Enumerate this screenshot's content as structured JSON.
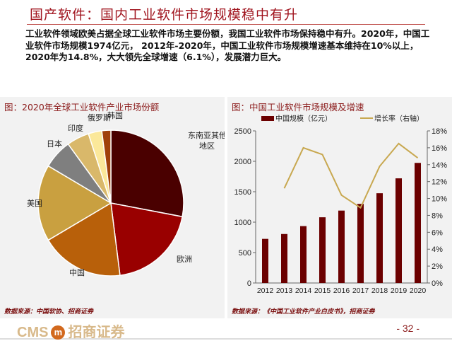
{
  "header": {
    "title": "国产软件：国内工业软件市场规模稳中有升"
  },
  "body_text": "工业软件领域欧美占据全球工业软件市场主要份额，我国工业软件市场保持稳中有升。2020年，中国工业软件市场规模1974亿元， 2012年-2020年，中国工业软件市场规模增速基本维持在10%以上，2020年为14.8%，大大领先全球增速（6.1%），发展潜力巨大。",
  "left_panel": {
    "title": "图：2020年全球工业软件产业市场份额",
    "source": "数据来源：中国软协、招商证券"
  },
  "right_panel": {
    "title": "图：中国工业软件市场规模及增速",
    "source": "数据来源：《中国工业软件产业白皮书》，招商证券"
  },
  "footer": {
    "logo_text": "CMS",
    "logo_mark": "m",
    "logo_cn": "招商证券",
    "page": "- 32 -"
  },
  "chart_data": [
    {
      "type": "pie",
      "title": "图：2020年全球工业软件产业市场份额",
      "slices": [
        {
          "label": "东南亚其他地区",
          "value": 28,
          "color": "#4a0000"
        },
        {
          "label": "欧洲",
          "value": 20,
          "color": "#990000"
        },
        {
          "label": "中国",
          "value": 18.5,
          "color": "#b8600a"
        },
        {
          "label": "美国",
          "value": 17,
          "color": "#c9a040"
        },
        {
          "label": "日本",
          "value": 6.5,
          "color": "#7f7f7f"
        },
        {
          "label": "印度",
          "value": 5,
          "color": "#d9b86a"
        },
        {
          "label": "俄罗斯",
          "value": 3,
          "color": "#fbe89a"
        },
        {
          "label": "韩国",
          "value": 2,
          "color": "#a0400a"
        }
      ]
    },
    {
      "type": "bar+line",
      "title": "图：中国工业软件市场规模及增速",
      "categories": [
        "2012",
        "2013",
        "2014",
        "2015",
        "2016",
        "2017",
        "2018",
        "2019",
        "2020"
      ],
      "series": [
        {
          "name": "中国规模（亿元）",
          "type": "bar",
          "axis": "left",
          "color": "#6b0000",
          "values": [
            725,
            805,
            935,
            1080,
            1190,
            1300,
            1475,
            1720,
            1974
          ]
        },
        {
          "name": "增长率（右轴）",
          "type": "line",
          "axis": "right",
          "color": "#c8a850",
          "values": [
            null,
            11.2,
            16.0,
            15.2,
            10.4,
            8.9,
            13.8,
            16.5,
            14.8
          ]
        }
      ],
      "ylim_left": [
        0,
        2500
      ],
      "yticks_left": [
        "0",
        "500",
        "1000",
        "1500",
        "2000",
        "2500"
      ],
      "ylim_right": [
        0,
        18
      ],
      "yticks_right": [
        "0%",
        "2%",
        "4%",
        "6%",
        "8%",
        "10%",
        "12%",
        "14%",
        "16%",
        "18%"
      ],
      "legend": "top"
    }
  ]
}
